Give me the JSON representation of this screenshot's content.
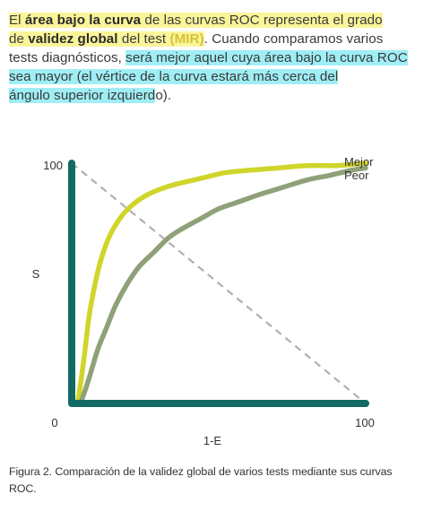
{
  "text": {
    "p1": "El ",
    "p1_b1": "área bajo la curva",
    "p1_r1": " de las curvas ROC representa el grado",
    "p2_de": "de ",
    "p2_b2": "validez global",
    "p2_r2": " del test ",
    "p2_mir": "(MIR)",
    "p2_r3": ". Cuando comparamos varios",
    "p3_a": "tests diagnósticos, ",
    "p3_hl": "será mejor aquel cuya área bajo la curva ROC",
    "p4": "sea mayor (el vértice de la curva estará más cerca del",
    "p5_hl": "ángulo superior izquierd",
    "p5_end": "o)."
  },
  "caption": {
    "line1": "Figura 2. Comparación de la validez global de varios tests mediante sus curvas",
    "line2": "ROC."
  },
  "colors": {
    "axis": "#136a62",
    "mejor": "#cfd52a",
    "peor": "#8fa178",
    "diagonal": "#b0b0b0",
    "highlight_yellow": "#fbf59a",
    "highlight_cyan": "#9feef5"
  },
  "chart_data": {
    "type": "line",
    "xlabel": "1-E",
    "ylabel": "S",
    "xlim": [
      0,
      100
    ],
    "ylim": [
      0,
      100
    ],
    "x_ticks": [
      "0",
      "100"
    ],
    "y_ticks": [
      "100"
    ],
    "grid": false,
    "legend": "labels at right end of curves",
    "series": [
      {
        "name": "Mejor",
        "x": [
          2,
          3,
          4,
          5,
          6,
          8,
          10,
          13,
          17,
          21,
          26,
          32,
          38,
          45,
          52,
          60,
          70,
          80,
          90,
          100
        ],
        "y": [
          0,
          8,
          17,
          27,
          37,
          50,
          60,
          70,
          78,
          83,
          87,
          90,
          92,
          94,
          96,
          97,
          98,
          99,
          99,
          100
        ]
      },
      {
        "name": "Peor",
        "x": [
          3,
          5,
          7,
          9,
          12,
          15,
          19,
          23,
          28,
          33,
          38,
          44,
          50,
          57,
          64,
          72,
          80,
          88,
          95,
          100
        ],
        "y": [
          0,
          7,
          15,
          23,
          32,
          41,
          50,
          57,
          63,
          69,
          73,
          77,
          81,
          84,
          87,
          90,
          93,
          95,
          97,
          98
        ]
      },
      {
        "name": "",
        "x": [
          0,
          100
        ],
        "y": [
          100,
          0
        ]
      }
    ]
  }
}
